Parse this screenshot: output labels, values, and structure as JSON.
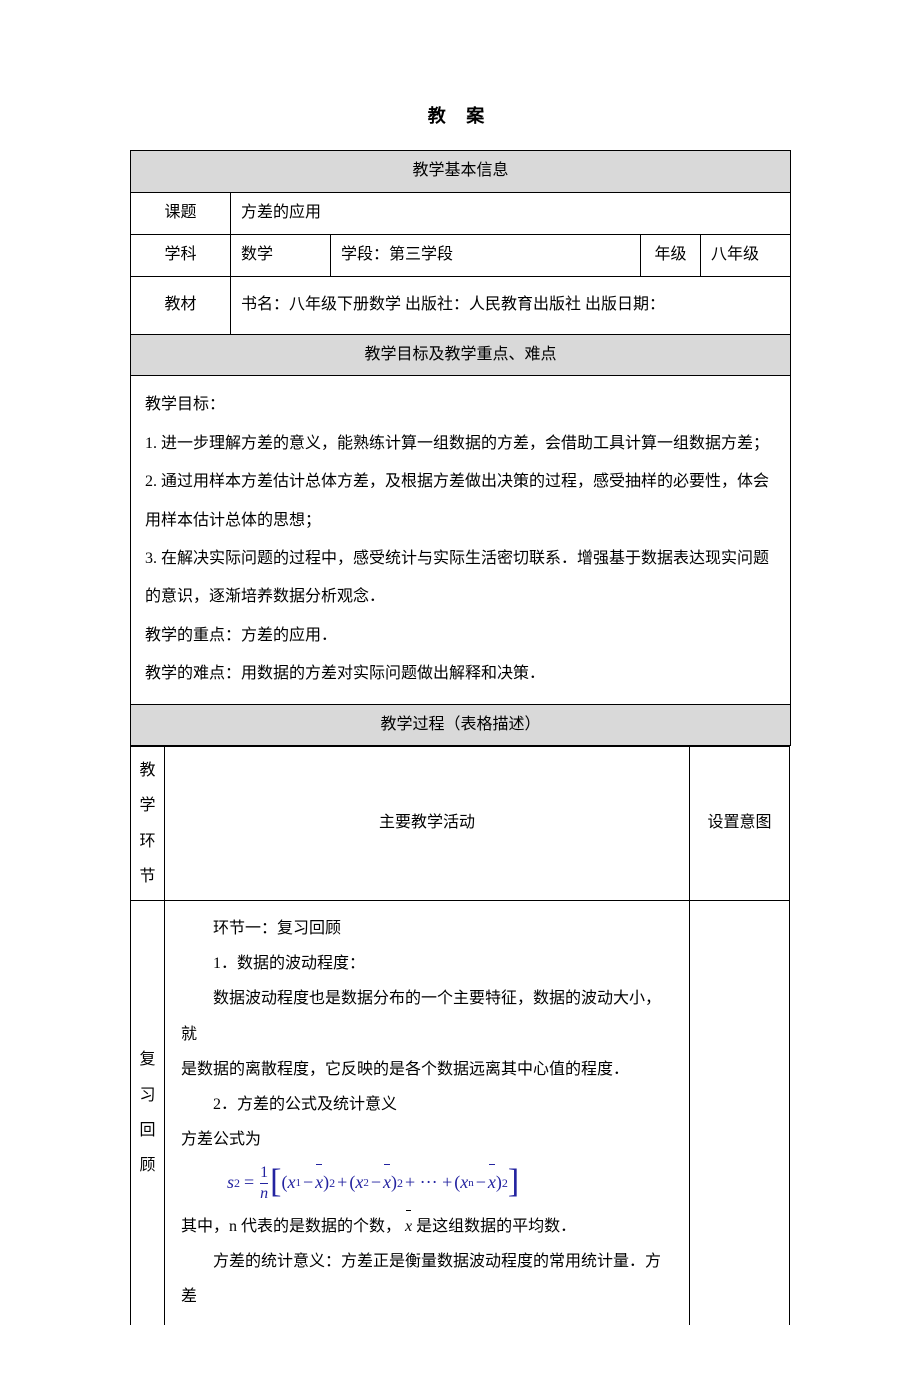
{
  "page": {
    "title": "教  案"
  },
  "info": {
    "header": "教学基本信息",
    "topic_label": "课题",
    "topic_value": "方差的应用",
    "subject_label": "学科",
    "subject_value": "数学",
    "stage_text": "学段：第三学段",
    "grade_label": "年级",
    "grade_value": "八年级",
    "textbook_label": "教材",
    "textbook_value": "书名：八年级下册数学   出版社：人民教育出版社 出版日期："
  },
  "goals": {
    "header": "教学目标及教学重点、难点",
    "lines": {
      "l0": "教学目标：",
      "l1": "1.    进一步理解方差的意义，能熟练计算一组数据的方差，会借助工具计算一组数据方差；",
      "l2": "2.    通过用样本方差估计总体方差，及根据方差做出决策的过程，感受抽样的必要性，体会",
      "l3": "用样本估计总体的思想；",
      "l4": "3.    在解决实际问题的过程中，感受统计与实际生活密切联系．增强基于数据表达现实问题",
      "l5": "的意识，逐渐培养数据分析观念．",
      "l6": "教学的重点：方差的应用．",
      "l7": "教学的难点：用数据的方差对实际问题做出解释和决策．"
    }
  },
  "process": {
    "header": "教学过程（表格描述）",
    "col_stage": "教学环节",
    "col_activity": "主要教学活动",
    "col_intent": "设置意图",
    "stage1": "复习回顾",
    "activity": {
      "a1": "环节一：复习回顾",
      "a2": "1．数据的波动程度：",
      "a3": "数据波动程度也是数据分布的一个主要特征，数据的波动大小，就",
      "a4": "是数据的离散程度，它反映的是各个数据远离其中心值的程度．",
      "a5": "2．方差的公式及统计意义",
      "a6": "方差公式为",
      "a7_prefix": "其中，n 代表的是数据的个数，",
      "a7_suffix": " 是这组数据的平均数．",
      "a8": "方差的统计意义：方差正是衡量数据波动程度的常用统计量．方差"
    }
  },
  "colors": {
    "header_bg": "#d9d9d9",
    "formula_color": "#2323a0"
  }
}
